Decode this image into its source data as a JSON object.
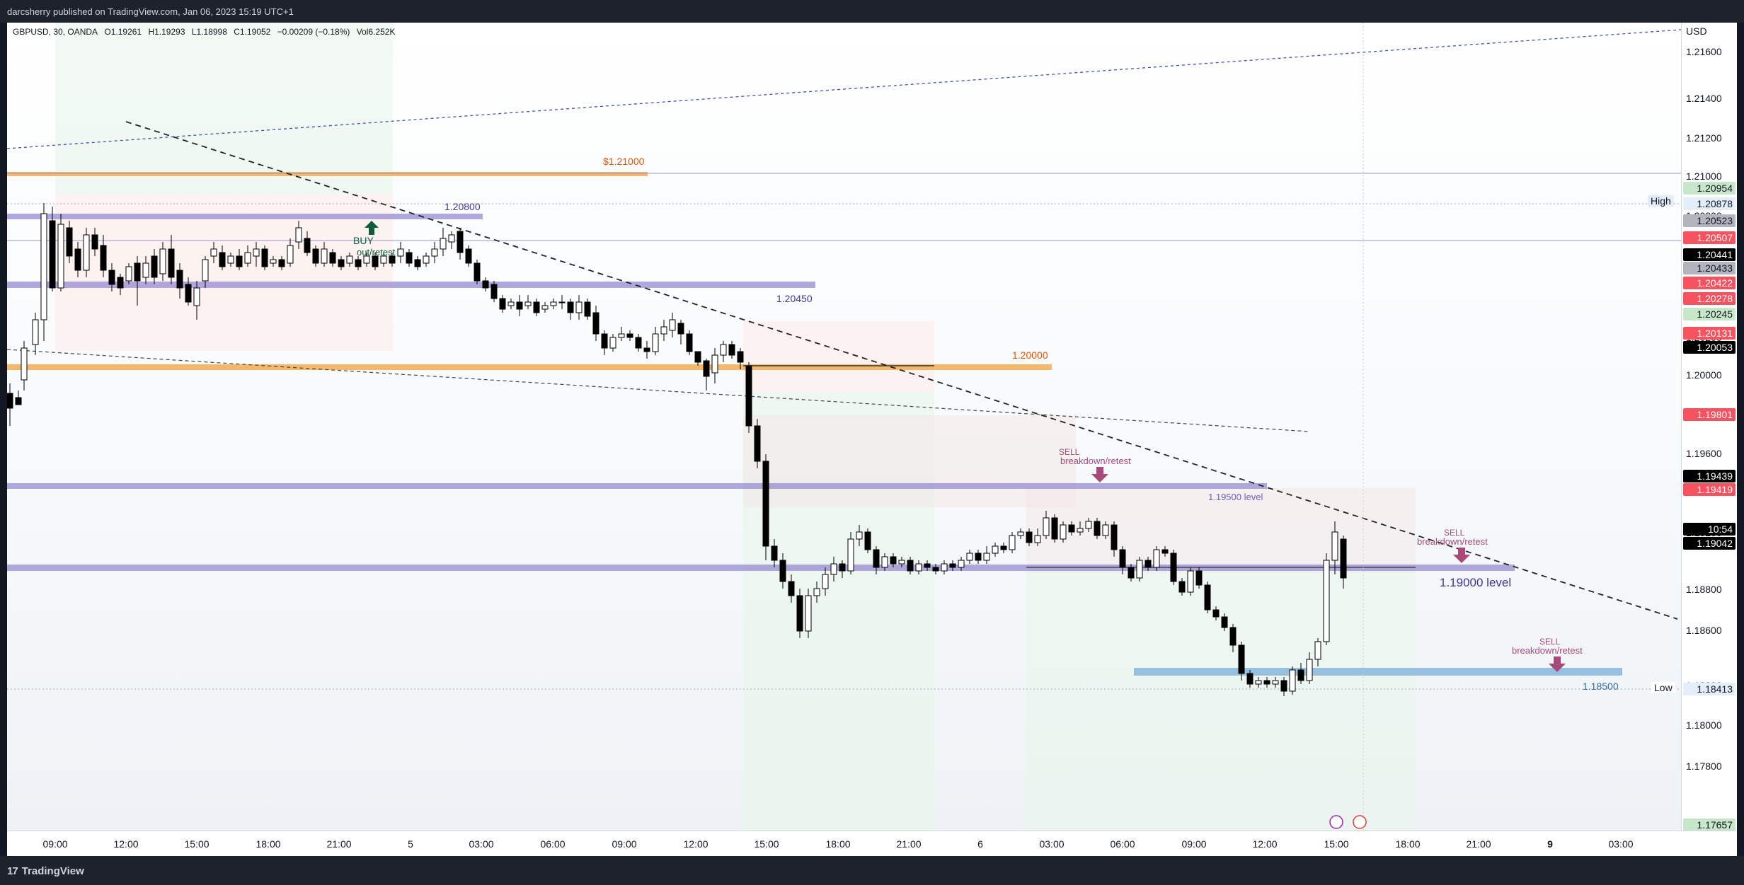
{
  "header": {
    "published": "darcsherry published on TradingView.com, Jan 06, 2023 15:19 UTC+1"
  },
  "legend": {
    "symbol": "GBPUSD, 30, OANDA",
    "open": "O1.19261",
    "high": "H1.19293",
    "low": "L1.18998",
    "close": "C1.19052",
    "change": "−0.00209 (−0.18%)",
    "volume": "Vol6.252K"
  },
  "price_axis": {
    "currency": "USD",
    "ticks": [
      "1.21600",
      "1.21400",
      "1.21200",
      "1.21000",
      "1.20800",
      "1.20200",
      "1.20000",
      "1.19600",
      "1.19200",
      "1.18800",
      "1.18600",
      "1.18200",
      "1.18000",
      "1.17800"
    ],
    "badges": [
      {
        "value": "1.20954",
        "bg": "#c8e6c9",
        "fg": "#131722"
      },
      {
        "value": "1.20878",
        "bg": "#e3eef9",
        "fg": "#131722"
      },
      {
        "value": "1.20523",
        "bg": "#b2b5be",
        "fg": "#131722"
      },
      {
        "value": "1.20507",
        "bg": "#f7525f",
        "fg": "#ffffff"
      },
      {
        "value": "1.20441",
        "bg": "#000000",
        "fg": "#ffffff"
      },
      {
        "value": "1.20433",
        "bg": "#b2b5be",
        "fg": "#131722"
      },
      {
        "value": "1.20422",
        "bg": "#f7525f",
        "fg": "#ffffff"
      },
      {
        "value": "1.20278",
        "bg": "#f7525f",
        "fg": "#ffffff"
      },
      {
        "value": "1.20245",
        "bg": "#c8e6c9",
        "fg": "#131722"
      },
      {
        "value": "1.20131",
        "bg": "#f7525f",
        "fg": "#ffffff"
      },
      {
        "value": "1.20053",
        "bg": "#000000",
        "fg": "#ffffff"
      },
      {
        "value": "1.19801",
        "bg": "#f7525f",
        "fg": "#ffffff"
      },
      {
        "value": "1.19439",
        "bg": "#000000",
        "fg": "#ffffff"
      },
      {
        "value": "1.19419",
        "bg": "#f7525f",
        "fg": "#ffffff"
      },
      {
        "value": "10:54",
        "bg": "#000000",
        "fg": "#ffffff"
      },
      {
        "value": "1.19042",
        "bg": "#000000",
        "fg": "#ffffff"
      },
      {
        "value": "1.18413",
        "bg": "#e3eef9",
        "fg": "#131722"
      },
      {
        "value": "1.17657",
        "bg": "#c8e6c9",
        "fg": "#131722"
      }
    ],
    "high_tag": "High",
    "low_tag": "Low"
  },
  "time_axis": {
    "labels": [
      {
        "t": "09:00",
        "bold": false
      },
      {
        "t": "12:00",
        "bold": false
      },
      {
        "t": "15:00",
        "bold": false
      },
      {
        "t": "18:00",
        "bold": false
      },
      {
        "t": "21:00",
        "bold": false
      },
      {
        "t": "5",
        "bold": false
      },
      {
        "t": "03:00",
        "bold": false
      },
      {
        "t": "06:00",
        "bold": false
      },
      {
        "t": "09:00",
        "bold": false
      },
      {
        "t": "12:00",
        "bold": false
      },
      {
        "t": "15:00",
        "bold": false
      },
      {
        "t": "18:00",
        "bold": false
      },
      {
        "t": "21:00",
        "bold": false
      },
      {
        "t": "6",
        "bold": false
      },
      {
        "t": "03:00",
        "bold": false
      },
      {
        "t": "06:00",
        "bold": false
      },
      {
        "t": "09:00",
        "bold": false
      },
      {
        "t": "12:00",
        "bold": false
      },
      {
        "t": "15:00",
        "bold": false
      },
      {
        "t": "18:00",
        "bold": false
      },
      {
        "t": "21:00",
        "bold": false
      },
      {
        "t": "9",
        "bold": true
      },
      {
        "t": "03:00",
        "bold": false
      }
    ]
  },
  "annotations": {
    "level_121000": "$1.21000",
    "level_120800": "1.20800",
    "level_120450": "1.20450",
    "level_120000": "1.20000",
    "level_119500": "1.19500 level",
    "level_119000": "1.19000 level",
    "level_118500": "1.18500",
    "buy_label": "BUY",
    "buy_sub": "out/retest",
    "sell1_label": "SELL",
    "sell1_sub": "breakdown/retest",
    "sell2_label": "SELL",
    "sell2_sub": "breakdown/retest",
    "sell3_label": "SELL",
    "sell3_sub": "breakdown/retest"
  },
  "colors": {
    "bull_candle": "#ffffff",
    "bear_candle": "#000000",
    "candle_outline": "#000000",
    "level_purple": "#9c92d6",
    "level_orange": "#f5b76a",
    "level_blue": "#7fb3d9",
    "sell_arrow": "#a8497a",
    "buy_arrow": "#0d5c3e",
    "label_orange": "#e65100",
    "label_purple": "#3f3896"
  },
  "footer": {
    "brand": "TradingView"
  }
}
